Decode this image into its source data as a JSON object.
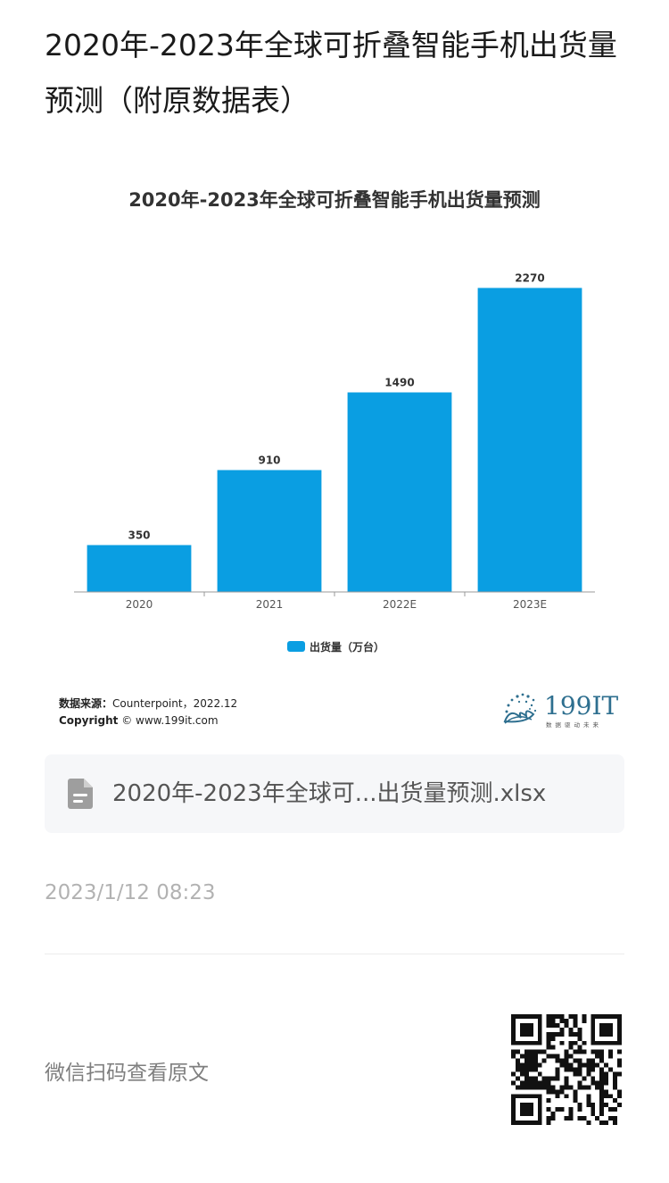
{
  "page": {
    "title": "2020年-2023年全球可折叠智能手机出货量预测（附原数据表）"
  },
  "chart_data": {
    "type": "bar",
    "title": "2020年-2023年全球可折叠智能手机出货量预测",
    "categories": [
      "2020",
      "2021",
      "2022E",
      "2023E"
    ],
    "series": [
      {
        "name": "出货量（万台）",
        "values": [
          350,
          910,
          1490,
          2270
        ],
        "color": "#0a9ee2"
      }
    ],
    "ylim": [
      0,
      2400
    ],
    "grid": false,
    "legend_position": "bottom"
  },
  "source": {
    "label": "数据来源：",
    "value": "Counterpoint，2022.12",
    "copyright_label": "Copyright",
    "copyright_value": "© www.199it.com"
  },
  "logo": {
    "text": "199IT",
    "tagline": "数据驱动未来",
    "color": "#2e6f8f"
  },
  "attachment": {
    "icon": "file-document-icon",
    "file_name": "2020年-2023年全球可...出货量预测.xlsx"
  },
  "meta": {
    "timestamp": "2023/1/12 08:23"
  },
  "footer": {
    "text": "微信扫码查看原文",
    "qr_icon": "qr-code-icon"
  }
}
